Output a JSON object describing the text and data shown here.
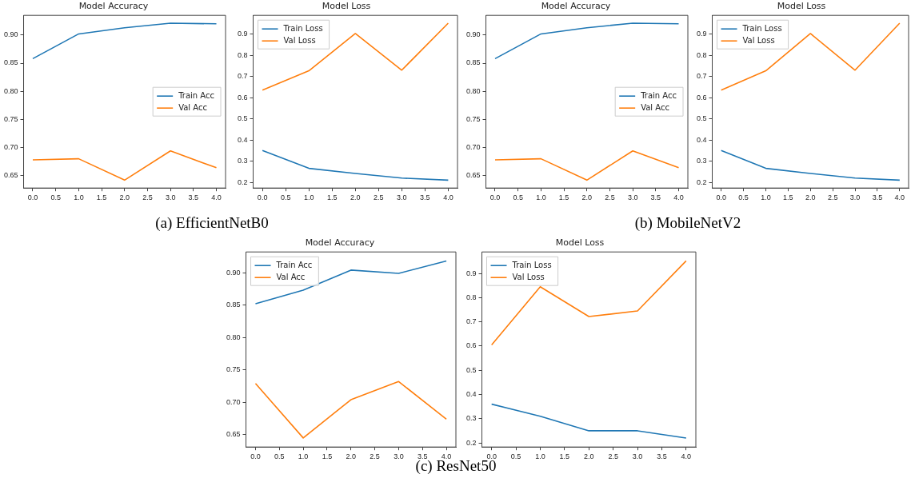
{
  "chart_data": [
    {
      "type": "line",
      "title": "Model Accuracy",
      "x": [
        0,
        1,
        2,
        3,
        4
      ],
      "xlim": [
        -0.2,
        4.2
      ],
      "xticks": [
        {
          "value": 0,
          "label": "0.0"
        },
        {
          "value": 0.5,
          "label": "0.5"
        },
        {
          "value": 1,
          "label": "1.0"
        },
        {
          "value": 1.5,
          "label": "1.5"
        },
        {
          "value": 2,
          "label": "2.0"
        },
        {
          "value": 2.5,
          "label": "2.5"
        },
        {
          "value": 3,
          "label": "3.0"
        },
        {
          "value": 3.5,
          "label": "3.5"
        },
        {
          "value": 4,
          "label": "4.0"
        }
      ],
      "ylim": [
        0.628,
        0.935
      ],
      "yticks": [
        {
          "value": 0.65,
          "label": "0.65"
        },
        {
          "value": 0.7,
          "label": "0.70"
        },
        {
          "value": 0.75,
          "label": "0.75"
        },
        {
          "value": 0.8,
          "label": "0.80"
        },
        {
          "value": 0.85,
          "label": "0.85"
        },
        {
          "value": 0.9,
          "label": "0.90"
        }
      ],
      "grid": false,
      "legend": "right",
      "annotations": [
        "(a) EfficientNetB0"
      ],
      "series": [
        {
          "name": "Train Acc",
          "color": "#1f77b4",
          "values": [
            0.858,
            0.902,
            0.913,
            0.921,
            0.92
          ]
        },
        {
          "name": "Val Acc",
          "color": "#ff7f0e",
          "values": [
            0.678,
            0.68,
            0.642,
            0.694,
            0.664
          ]
        }
      ]
    },
    {
      "type": "line",
      "title": "Model Loss",
      "x": [
        0,
        1,
        2,
        3,
        4
      ],
      "xlim": [
        -0.2,
        4.2
      ],
      "xticks": [
        {
          "value": 0,
          "label": "0.0"
        },
        {
          "value": 0.5,
          "label": "0.5"
        },
        {
          "value": 1,
          "label": "1.0"
        },
        {
          "value": 1.5,
          "label": "1.5"
        },
        {
          "value": 2,
          "label": "2.0"
        },
        {
          "value": 2.5,
          "label": "2.5"
        },
        {
          "value": 3,
          "label": "3.0"
        },
        {
          "value": 3.5,
          "label": "3.5"
        },
        {
          "value": 4,
          "label": "4.0"
        }
      ],
      "ylim": [
        0.173,
        0.989
      ],
      "yticks": [
        0.2,
        0.3,
        0.4,
        0.5,
        0.6,
        0.7,
        0.8,
        0.9
      ],
      "grid": false,
      "legend": "top left",
      "series": [
        {
          "name": "Train Loss",
          "color": "#1f77b4",
          "values": [
            0.35,
            0.266,
            0.242,
            0.22,
            0.21
          ]
        },
        {
          "name": "Val Loss",
          "color": "#ff7f0e",
          "values": [
            0.636,
            0.727,
            0.903,
            0.73,
            0.952
          ]
        }
      ]
    },
    {
      "type": "line",
      "title": "Model Accuracy",
      "x": [
        0,
        1,
        2,
        3,
        4
      ],
      "xlim": [
        -0.2,
        4.2
      ],
      "xticks": [
        {
          "value": 0,
          "label": "0.0"
        },
        {
          "value": 0.5,
          "label": "0.5"
        },
        {
          "value": 1,
          "label": "1.0"
        },
        {
          "value": 1.5,
          "label": "1.5"
        },
        {
          "value": 2,
          "label": "2.0"
        },
        {
          "value": 2.5,
          "label": "2.5"
        },
        {
          "value": 3,
          "label": "3.0"
        },
        {
          "value": 3.5,
          "label": "3.5"
        },
        {
          "value": 4,
          "label": "4.0"
        }
      ],
      "ylim": [
        0.628,
        0.935
      ],
      "yticks": [
        {
          "value": 0.65,
          "label": "0.65"
        },
        {
          "value": 0.7,
          "label": "0.70"
        },
        {
          "value": 0.75,
          "label": "0.75"
        },
        {
          "value": 0.8,
          "label": "0.80"
        },
        {
          "value": 0.85,
          "label": "0.85"
        },
        {
          "value": 0.9,
          "label": "0.90"
        }
      ],
      "grid": false,
      "legend": "right",
      "annotations": [
        "(b) MobileNetV2"
      ],
      "series": [
        {
          "name": "Train Acc",
          "color": "#1f77b4",
          "values": [
            0.858,
            0.902,
            0.913,
            0.921,
            0.92
          ]
        },
        {
          "name": "Val Acc",
          "color": "#ff7f0e",
          "values": [
            0.678,
            0.68,
            0.642,
            0.694,
            0.664
          ]
        }
      ]
    },
    {
      "type": "line",
      "title": "Model Loss",
      "x": [
        0,
        1,
        2,
        3,
        4
      ],
      "xlim": [
        -0.2,
        4.2
      ],
      "xticks": [
        {
          "value": 0,
          "label": "0.0"
        },
        {
          "value": 0.5,
          "label": "0.5"
        },
        {
          "value": 1,
          "label": "1.0"
        },
        {
          "value": 1.5,
          "label": "1.5"
        },
        {
          "value": 2,
          "label": "2.0"
        },
        {
          "value": 2.5,
          "label": "2.5"
        },
        {
          "value": 3,
          "label": "3.0"
        },
        {
          "value": 3.5,
          "label": "3.5"
        },
        {
          "value": 4,
          "label": "4.0"
        }
      ],
      "ylim": [
        0.173,
        0.989
      ],
      "yticks": [
        0.2,
        0.3,
        0.4,
        0.5,
        0.6,
        0.7,
        0.8,
        0.9
      ],
      "grid": false,
      "legend": "top left",
      "series": [
        {
          "name": "Train Loss",
          "color": "#1f77b4",
          "values": [
            0.35,
            0.266,
            0.242,
            0.22,
            0.21
          ]
        },
        {
          "name": "Val Loss",
          "color": "#ff7f0e",
          "values": [
            0.636,
            0.727,
            0.903,
            0.73,
            0.952
          ]
        }
      ]
    },
    {
      "type": "line",
      "title": "Model Accuracy",
      "x": [
        0,
        1,
        2,
        3,
        4
      ],
      "xlim": [
        -0.2,
        4.2
      ],
      "xticks": [
        {
          "value": 0,
          "label": "0.0"
        },
        {
          "value": 0.5,
          "label": "0.5"
        },
        {
          "value": 1,
          "label": "1.0"
        },
        {
          "value": 1.5,
          "label": "1.5"
        },
        {
          "value": 2,
          "label": "2.0"
        },
        {
          "value": 2.5,
          "label": "2.5"
        },
        {
          "value": 3,
          "label": "3.0"
        },
        {
          "value": 3.5,
          "label": "3.5"
        },
        {
          "value": 4,
          "label": "4.0"
        }
      ],
      "ylim": [
        0.631,
        0.932
      ],
      "yticks": [
        {
          "value": 0.65,
          "label": "0.65"
        },
        {
          "value": 0.7,
          "label": "0.70"
        },
        {
          "value": 0.75,
          "label": "0.75"
        },
        {
          "value": 0.8,
          "label": "0.80"
        },
        {
          "value": 0.85,
          "label": "0.85"
        },
        {
          "value": 0.9,
          "label": "0.90"
        }
      ],
      "grid": false,
      "legend": "top left",
      "annotations": [
        "(c) ResNet50"
      ],
      "series": [
        {
          "name": "Train Acc",
          "color": "#1f77b4",
          "values": [
            0.852,
            0.873,
            0.904,
            0.899,
            0.918
          ]
        },
        {
          "name": "Val Acc",
          "color": "#ff7f0e",
          "values": [
            0.729,
            0.645,
            0.704,
            0.732,
            0.674
          ]
        }
      ]
    },
    {
      "type": "line",
      "title": "Model Loss",
      "x": [
        0,
        1,
        2,
        3,
        4
      ],
      "xlim": [
        -0.2,
        4.2
      ],
      "xticks": [
        {
          "value": 0,
          "label": "0.0"
        },
        {
          "value": 0.5,
          "label": "0.5"
        },
        {
          "value": 1,
          "label": "1.0"
        },
        {
          "value": 1.5,
          "label": "1.5"
        },
        {
          "value": 2,
          "label": "2.0"
        },
        {
          "value": 2.5,
          "label": "2.5"
        },
        {
          "value": 3,
          "label": "3.0"
        },
        {
          "value": 3.5,
          "label": "3.5"
        },
        {
          "value": 4,
          "label": "4.0"
        }
      ],
      "ylim": [
        0.183,
        0.989
      ],
      "yticks": [
        0.2,
        0.3,
        0.4,
        0.5,
        0.6,
        0.7,
        0.8,
        0.9
      ],
      "grid": false,
      "legend": "top left",
      "series": [
        {
          "name": "Train Loss",
          "color": "#1f77b4",
          "values": [
            0.36,
            0.31,
            0.25,
            0.25,
            0.22
          ]
        },
        {
          "name": "Val Loss",
          "color": "#ff7f0e",
          "values": [
            0.605,
            0.845,
            0.722,
            0.745,
            0.952
          ]
        }
      ]
    }
  ]
}
